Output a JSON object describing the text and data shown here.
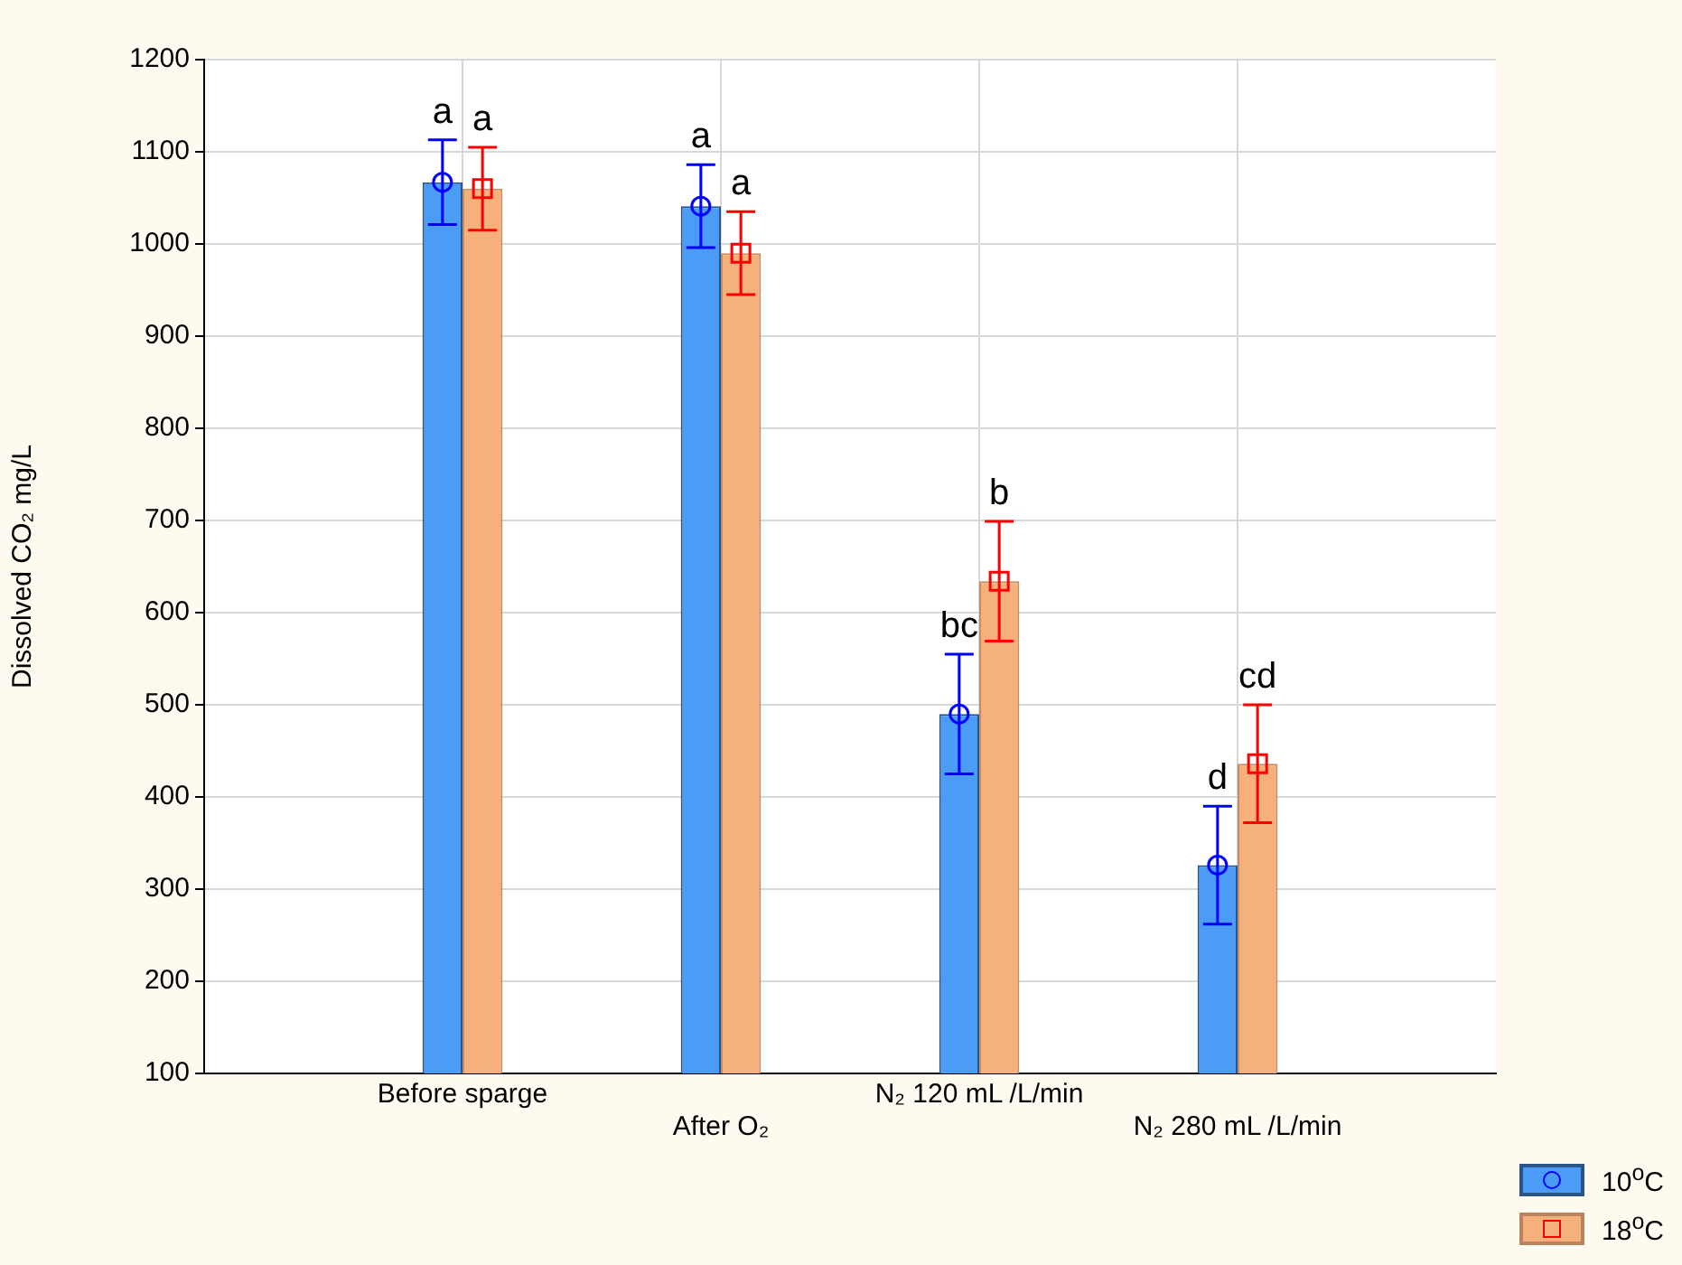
{
  "chart_data": {
    "type": "bar",
    "ylabel": "Dissolved CO₂ mg/L",
    "categories": [
      "Before sparge",
      "After O₂",
      "N₂ 120 mL /L/min",
      "N₂ 280 mL /L/min"
    ],
    "series": [
      {
        "name": "10$^{o}$C",
        "color": "#4a9cf6",
        "values": [
          1067,
          1041,
          490,
          326
        ]
      },
      {
        "name": "18$^{o}$C",
        "color": "#f6b07c",
        "values": [
          1060,
          990,
          634,
          436
        ]
      },
      {
        "type": "scatter",
        "color": "#0000ff",
        "marker": "circle",
        "x": [
          "Before sparge",
          "After O₂",
          "N₂ 120 mL /L/min",
          "N₂ 280 mL /L/min"
        ],
        "values": [
          1067,
          1041,
          490,
          326
        ],
        "errors": [
          46,
          45,
          65,
          64
        ]
      },
      {
        "type": "scatter",
        "color": "#ff0000",
        "marker": "square",
        "x": [
          "Before sparge",
          "After O₂",
          "N₂ 120 mL /L/min",
          "N₂ 280 mL /L/min"
        ],
        "values": [
          1060,
          990,
          634,
          436
        ],
        "errors": [
          45,
          45,
          65,
          64
        ]
      }
    ],
    "ylim": [
      100,
      1200
    ],
    "yticks": [
      100,
      200,
      300,
      400,
      500,
      600,
      700,
      800,
      900,
      1000,
      1100,
      1200
    ],
    "grid": true,
    "legend": "bottom right",
    "annotations": [
      "a",
      "a",
      "a",
      "a",
      "bc",
      "b",
      "d",
      "cd"
    ]
  }
}
